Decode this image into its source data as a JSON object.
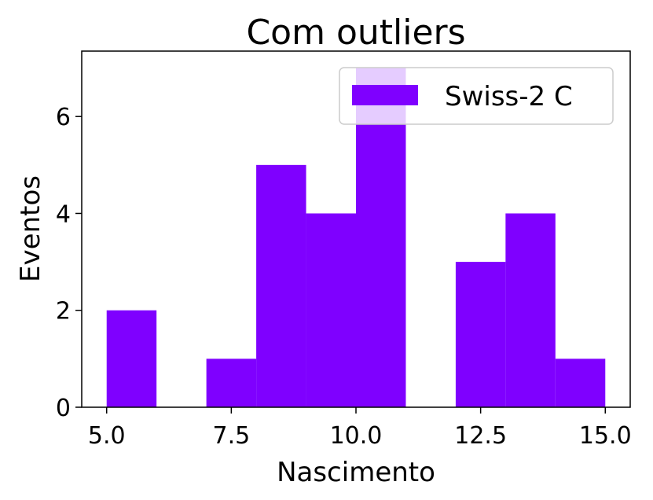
{
  "chart_data": {
    "type": "bar",
    "title": "Com outliers",
    "xlabel": "Nascimento",
    "ylabel": "Eventos",
    "bins": [
      {
        "x0": 5.0,
        "x1": 6.0,
        "count": 2
      },
      {
        "x0": 6.0,
        "x1": 7.0,
        "count": 0
      },
      {
        "x0": 7.0,
        "x1": 8.0,
        "count": 1
      },
      {
        "x0": 8.0,
        "x1": 9.0,
        "count": 5
      },
      {
        "x0": 9.0,
        "x1": 10.0,
        "count": 4
      },
      {
        "x0": 10.0,
        "x1": 11.0,
        "count": 7
      },
      {
        "x0": 11.0,
        "x1": 12.0,
        "count": 0
      },
      {
        "x0": 12.0,
        "x1": 13.0,
        "count": 3
      },
      {
        "x0": 13.0,
        "x1": 14.0,
        "count": 4
      },
      {
        "x0": 14.0,
        "x1": 15.0,
        "count": 1
      }
    ],
    "xlim": [
      4.5,
      15.5
    ],
    "ylim": [
      0,
      7.35
    ],
    "xticks": [
      {
        "value": 5.0,
        "label": "5.0"
      },
      {
        "value": 7.5,
        "label": "7.5"
      },
      {
        "value": 10.0,
        "label": "10.0"
      },
      {
        "value": 12.5,
        "label": "12.5"
      },
      {
        "value": 15.0,
        "label": "15.0"
      }
    ],
    "yticks": [
      {
        "value": 0,
        "label": "0"
      },
      {
        "value": 2,
        "label": "2"
      },
      {
        "value": 4,
        "label": "4"
      },
      {
        "value": 6,
        "label": "6"
      }
    ],
    "series": [
      {
        "name": "Swiss-2 C",
        "color": "#7f00ff"
      }
    ],
    "legend": "top-right",
    "grid": false
  }
}
